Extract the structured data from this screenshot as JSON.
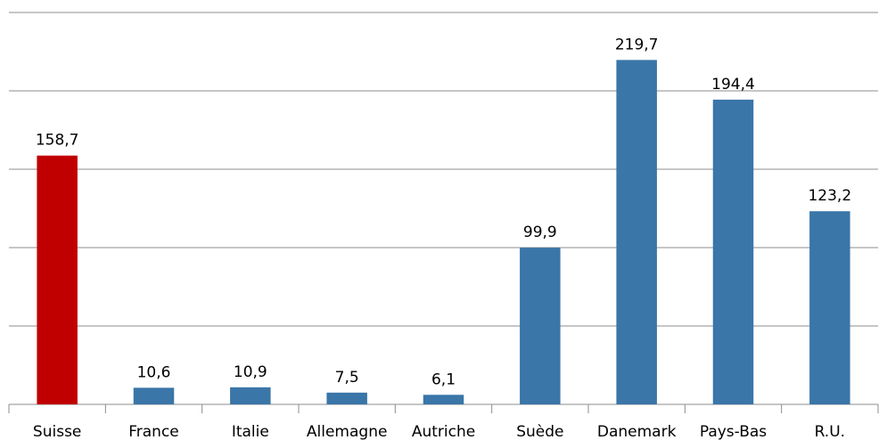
{
  "chart_data": {
    "type": "bar",
    "categories": [
      "Suisse",
      "France",
      "Italie",
      "Allemagne",
      "Autriche",
      "Suède",
      "Danemark",
      "Pays-Bas",
      "R.U."
    ],
    "values": [
      158.7,
      10.6,
      10.9,
      7.5,
      6.1,
      99.9,
      219.7,
      194.4,
      123.2
    ],
    "value_labels": [
      "158,7",
      "10,6",
      "10,9",
      "7,5",
      "6,1",
      "99,9",
      "219,7",
      "194,4",
      "123,2"
    ],
    "colors": [
      "#c00000",
      "#3a76a8",
      "#3a76a8",
      "#3a76a8",
      "#3a76a8",
      "#3a76a8",
      "#3a76a8",
      "#3a76a8",
      "#3a76a8"
    ],
    "ylim": [
      0,
      250
    ],
    "yticks": [
      0,
      50,
      100,
      150,
      200,
      250
    ],
    "grid": true
  }
}
